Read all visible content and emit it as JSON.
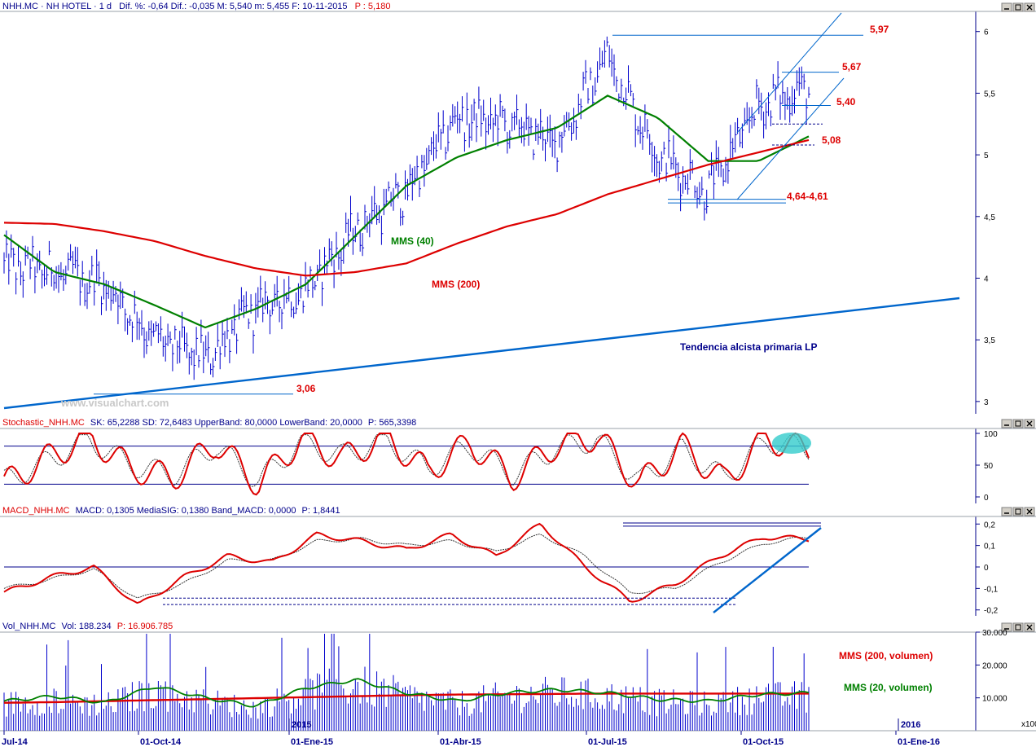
{
  "colors": {
    "price_bar": "#0000cc",
    "sma40": "#008000",
    "sma200": "#dd0000",
    "trend": "#0066cc",
    "panel_line": "#00008b",
    "hdr_red": "#dd0000",
    "hdr_blue": "#00008b",
    "highlight": "#33cccc"
  },
  "watermark": "www.visualchart.com",
  "price_panel": {
    "header": {
      "symbol": "NHH.MC · NH HOTEL · 1 d",
      "stats": "Dif. %: -0,64  Dif.: -0,035  M: 5,540  m: 5,455  F: 10-11-2015",
      "last": "P : 5,180"
    },
    "y_ticks": [
      "6",
      "5,5",
      "5",
      "4,5",
      "4",
      "3,5",
      "3"
    ],
    "labels": {
      "sma40": "MMS (40)",
      "sma200": "MMS (200)",
      "trend": "Tendencia alcista primaria LP"
    },
    "levels": [
      "5,97",
      "5,67",
      "5,40",
      "5,08",
      "4,64-4,61",
      "3,06"
    ]
  },
  "stoch_panel": {
    "header": {
      "name": "Stochastic_NHH.MC",
      "values": "SK: 65,2288  SD: 72,6483  UpperBand: 80,0000  LowerBand: 20,0000",
      "last": "P: 565,3398"
    },
    "y_ticks": [
      "100",
      "50",
      "0"
    ]
  },
  "macd_panel": {
    "header": {
      "name": "MACD_NHH.MC",
      "values": "MACD: 0,1305  MediaSIG: 0,1380  Band_MACD: 0,0000",
      "last": "P: 1,8441"
    },
    "y_ticks": [
      "0,2",
      "0,1",
      "0",
      "-0,1",
      "-0,2"
    ]
  },
  "vol_panel": {
    "header": {
      "name": "Vol_NHH.MC",
      "values": "Vol: 188.234",
      "last": "P: 16.906.785"
    },
    "y_ticks": [
      "30.000",
      "20.000",
      "10.000"
    ],
    "unit": "x100",
    "labels": {
      "ma200": "MMS (200, volumen)",
      "ma20": "MMS (20, volumen)"
    },
    "year_marks": [
      "2015",
      "2016"
    ]
  },
  "x_ticks": [
    "Jul-14",
    "01-Oct-14",
    "01-Ene-15",
    "01-Abr-15",
    "01-Jul-15",
    "01-Oct-15",
    "01-Ene-16"
  ],
  "chart_data": [
    {
      "type": "line",
      "panel": "price",
      "x": [
        "Jul-14",
        "Aug-14",
        "Sep-14",
        "Oct-14",
        "Nov-14",
        "Dec-14",
        "Jan-15",
        "Feb-15",
        "Mar-15",
        "Apr-15",
        "May-15",
        "Jun-15",
        "Jul-15",
        "Aug-15",
        "Sep-15",
        "Oct-15",
        "Nov-15"
      ],
      "series": [
        {
          "name": "MMS (40)",
          "values": [
            4.35,
            4.05,
            3.95,
            3.78,
            3.6,
            3.75,
            3.95,
            4.35,
            4.75,
            4.98,
            5.12,
            5.22,
            5.48,
            5.3,
            4.95,
            4.95,
            5.15
          ]
        },
        {
          "name": "MMS (200)",
          "values": [
            4.45,
            4.44,
            4.38,
            4.3,
            4.18,
            4.08,
            4.02,
            4.05,
            4.12,
            4.28,
            4.42,
            4.52,
            4.68,
            4.8,
            4.92,
            5.02,
            5.12
          ]
        }
      ],
      "close": [
        4.1,
        4.05,
        3.95,
        3.5,
        3.35,
        3.75,
        3.9,
        4.4,
        4.7,
        5.3,
        5.25,
        5.1,
        5.8,
        5.0,
        4.7,
        5.4,
        5.55
      ],
      "ylim": [
        2.9,
        6.15
      ]
    },
    {
      "type": "line",
      "panel": "stochastic",
      "series": [
        {
          "name": "SK",
          "values": [
            20,
            60,
            95,
            45,
            30,
            85,
            20,
            90,
            60,
            95,
            40,
            85,
            30,
            80,
            95,
            20,
            80,
            25,
            92,
            72
          ]
        },
        {
          "name": "SD",
          "values": [
            25,
            55,
            90,
            50,
            35,
            80,
            25,
            85,
            65,
            90,
            45,
            80,
            35,
            75,
            90,
            25,
            75,
            30,
            88,
            75
          ]
        }
      ],
      "bands": [
        80,
        20
      ],
      "ylim": [
        0,
        100
      ]
    },
    {
      "type": "line",
      "panel": "macd",
      "series": [
        {
          "name": "MACD",
          "values": [
            -0.12,
            -0.05,
            0.0,
            -0.18,
            -0.05,
            0.05,
            0.02,
            0.15,
            0.12,
            0.08,
            0.15,
            0.05,
            0.2,
            0.0,
            -0.16,
            -0.08,
            0.05,
            0.14,
            0.13
          ]
        },
        {
          "name": "MediaSIG",
          "values": [
            -0.1,
            -0.06,
            -0.01,
            -0.15,
            -0.08,
            0.03,
            0.03,
            0.12,
            0.13,
            0.1,
            0.12,
            0.07,
            0.15,
            0.05,
            -0.12,
            -0.1,
            0.02,
            0.11,
            0.14
          ]
        }
      ],
      "band": 0,
      "ylim": [
        -0.22,
        0.22
      ]
    },
    {
      "type": "bar",
      "panel": "volume",
      "unit": "x100",
      "series": [
        {
          "name": "MMS (200, volumen)",
          "values": [
            8500,
            8700,
            9000,
            9300,
            9600,
            9900,
            10200,
            10500,
            10800,
            11000,
            11100,
            11200,
            11300,
            11300,
            11300,
            11300,
            11300
          ]
        },
        {
          "name": "MMS (20, volumen)",
          "values": [
            9000,
            10500,
            8500,
            13500,
            10000,
            7500,
            13000,
            15500,
            11500,
            9000,
            11500,
            12500,
            11500,
            9500,
            9000,
            11000,
            11500
          ]
        }
      ],
      "ylim": [
        0,
        30000
      ]
    }
  ]
}
